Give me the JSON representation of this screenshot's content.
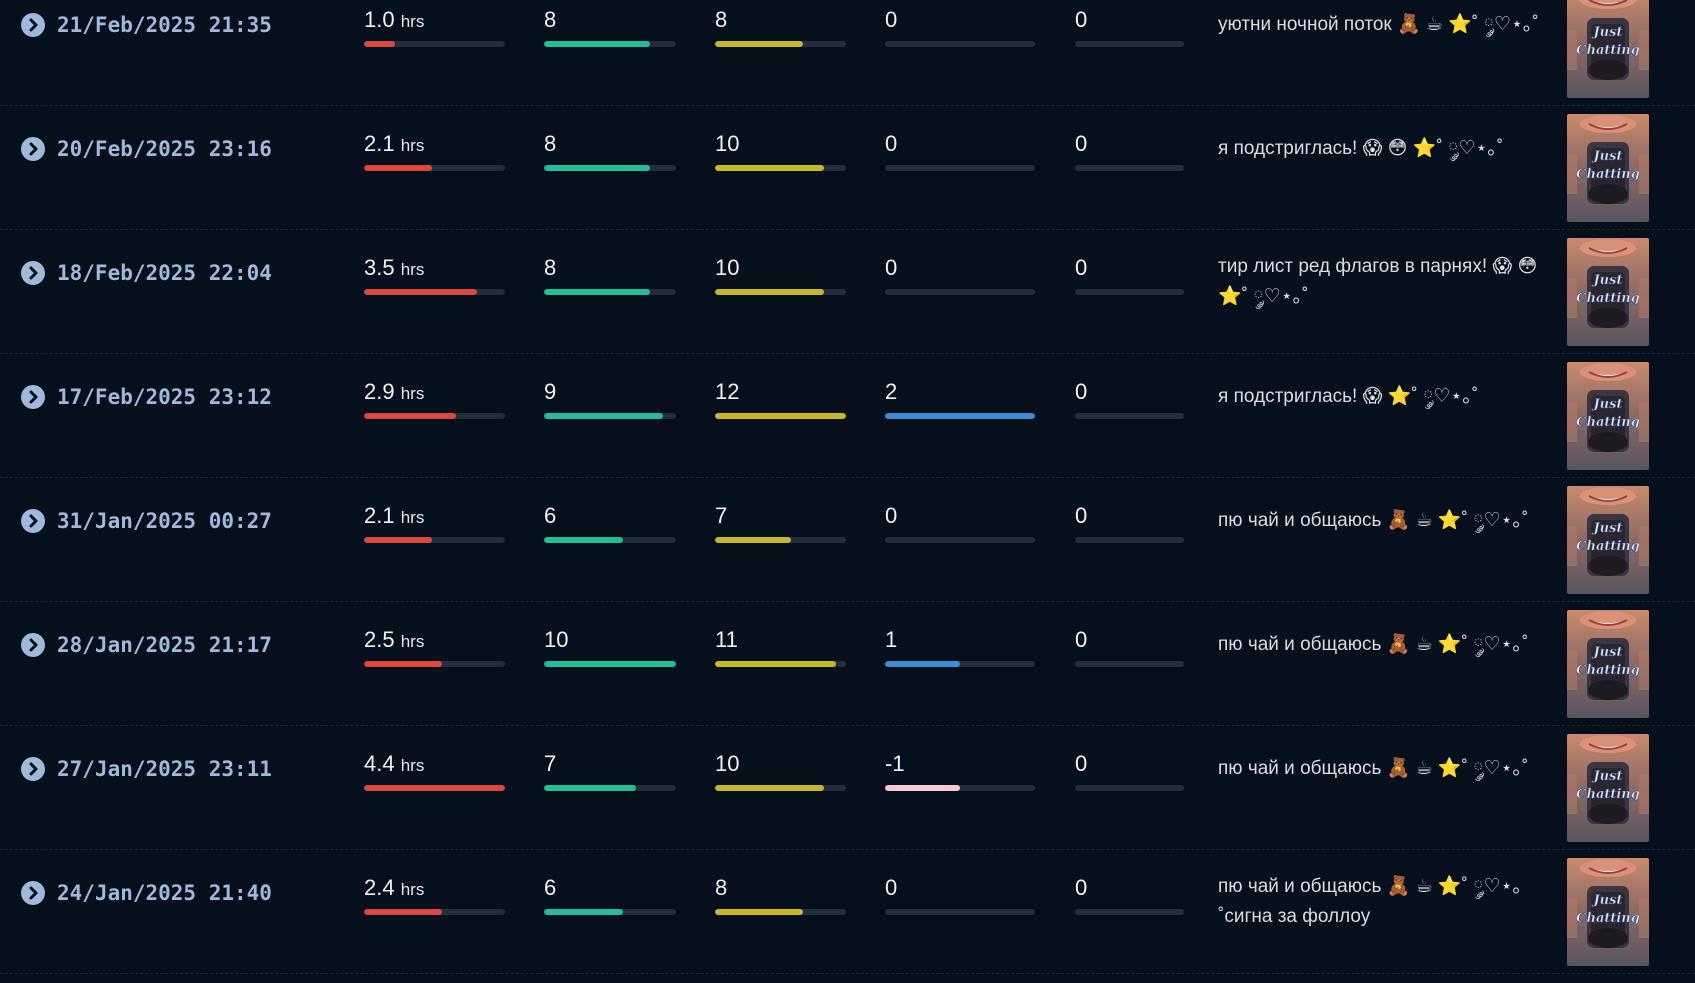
{
  "colors": {
    "background": "#060f1c",
    "date_text": "#9fb8dc",
    "hours_bar": "#e0473c",
    "bar2": "#1fbf9a",
    "bar3": "#c8b72a",
    "bar4_positive": "#3b8fd8",
    "bar4_negative": "#f7c9d0",
    "track": "#232d3b"
  },
  "thumbnail": {
    "icon": "just-chatting-category-thumbnail",
    "text": "Just Chatting"
  },
  "streams": [
    {
      "date": "21/Feb/2025 21:35",
      "hours": "1.0",
      "hours_unit": "hrs",
      "hours_fraction": 0.22,
      "s2": "8",
      "s2_fraction": 0.8,
      "s3": "8",
      "s3_fraction": 0.67,
      "s4": "0",
      "s4_fraction": 0,
      "s5": "0",
      "s5_fraction": 0,
      "title": "уютни ночной поток 🧸 ☕ ⭐˚ ༘♡⋆｡˚"
    },
    {
      "date": "20/Feb/2025 23:16",
      "hours": "2.1",
      "hours_unit": "hrs",
      "hours_fraction": 0.48,
      "s2": "8",
      "s2_fraction": 0.8,
      "s3": "10",
      "s3_fraction": 0.83,
      "s4": "0",
      "s4_fraction": 0,
      "s5": "0",
      "s5_fraction": 0,
      "title": "я подстриглась! 😱 😳 ⭐˚ ༘♡⋆｡˚"
    },
    {
      "date": "18/Feb/2025 22:04",
      "hours": "3.5",
      "hours_unit": "hrs",
      "hours_fraction": 0.8,
      "s2": "8",
      "s2_fraction": 0.8,
      "s3": "10",
      "s3_fraction": 0.83,
      "s4": "0",
      "s4_fraction": 0,
      "s5": "0",
      "s5_fraction": 0,
      "title": "тир лист ред флагов в парнях! 😱 😳 ⭐˚ ༘♡⋆｡˚"
    },
    {
      "date": "17/Feb/2025 23:12",
      "hours": "2.9",
      "hours_unit": "hrs",
      "hours_fraction": 0.65,
      "s2": "9",
      "s2_fraction": 0.9,
      "s3": "12",
      "s3_fraction": 1.0,
      "s4": "2",
      "s4_fraction": 1.0,
      "s5": "0",
      "s5_fraction": 0,
      "title": "я подстриглась! 😱 ⭐˚ ༘♡⋆｡˚"
    },
    {
      "date": "31/Jan/2025 00:27",
      "hours": "2.1",
      "hours_unit": "hrs",
      "hours_fraction": 0.48,
      "s2": "6",
      "s2_fraction": 0.6,
      "s3": "7",
      "s3_fraction": 0.58,
      "s4": "0",
      "s4_fraction": 0,
      "s5": "0",
      "s5_fraction": 0,
      "title": "пю чай и общаюсь 🧸 ☕ ⭐˚ ༘♡⋆｡˚"
    },
    {
      "date": "28/Jan/2025 21:17",
      "hours": "2.5",
      "hours_unit": "hrs",
      "hours_fraction": 0.55,
      "s2": "10",
      "s2_fraction": 1.0,
      "s3": "11",
      "s3_fraction": 0.92,
      "s4": "1",
      "s4_fraction": 0.5,
      "s5": "0",
      "s5_fraction": 0,
      "title": "пю чай и общаюсь 🧸 ☕ ⭐˚ ༘♡⋆｡˚"
    },
    {
      "date": "27/Jan/2025 23:11",
      "hours": "4.4",
      "hours_unit": "hrs",
      "hours_fraction": 1.0,
      "s2": "7",
      "s2_fraction": 0.7,
      "s3": "10",
      "s3_fraction": 0.83,
      "s4": "-1",
      "s4_fraction": 0.5,
      "s5": "0",
      "s5_fraction": 0,
      "title": "пю чай и общаюсь 🧸 ☕ ⭐˚ ༘♡⋆｡˚"
    },
    {
      "date": "24/Jan/2025 21:40",
      "hours": "2.4",
      "hours_unit": "hrs",
      "hours_fraction": 0.55,
      "s2": "6",
      "s2_fraction": 0.6,
      "s3": "8",
      "s3_fraction": 0.67,
      "s4": "0",
      "s4_fraction": 0,
      "s5": "0",
      "s5_fraction": 0,
      "title": "пю чай и общаюсь 🧸 ☕ ⭐˚ ༘♡⋆｡˚сигна за фоллоу"
    }
  ]
}
